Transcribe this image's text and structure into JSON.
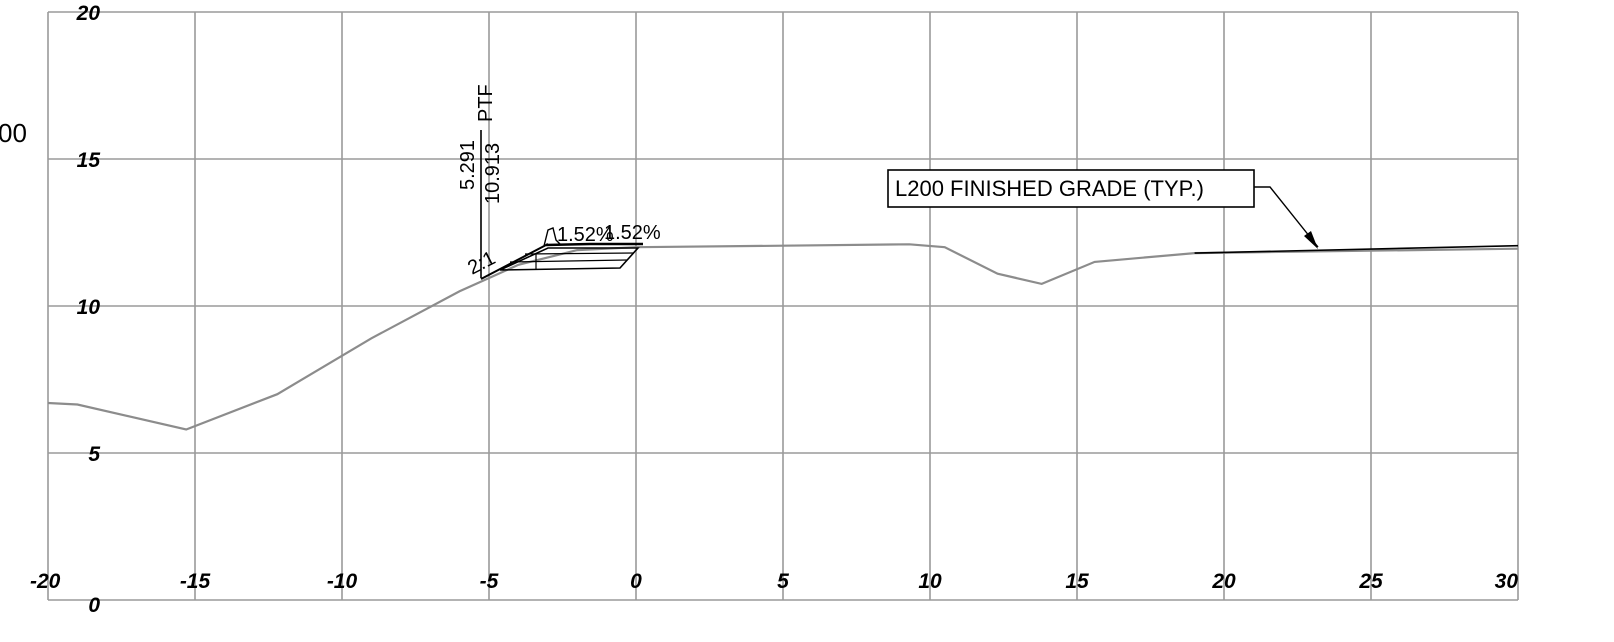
{
  "station_label_partial": "00",
  "axes": {
    "x_ticks": [
      "-20",
      "-15",
      "-10",
      "-5",
      "0",
      "5",
      "10",
      "15",
      "20",
      "25",
      "30"
    ],
    "y_ticks": [
      "0",
      "5",
      "10",
      "15",
      "20"
    ],
    "x_range": [
      -20,
      30
    ],
    "y_range": [
      0,
      20
    ],
    "grid": true
  },
  "annotations": {
    "offset_value": "5.291",
    "elevation_value": "10.913",
    "point_code": "PTF",
    "slope_ratio": "2:1",
    "cross_slope_1": "1.52%",
    "cross_slope_2": "1.52%",
    "callout": "L200 FINISHED GRADE (TYP.)"
  },
  "profiles": {
    "existing_ground": [
      [
        -20,
        6.7
      ],
      [
        -19,
        6.65
      ],
      [
        -15.3,
        5.8
      ],
      [
        -12.2,
        7.0
      ],
      [
        -9,
        8.9
      ],
      [
        -6,
        10.5
      ],
      [
        -4,
        11.4
      ],
      [
        -2,
        11.9
      ],
      [
        0,
        12.0
      ],
      [
        5,
        12.05
      ],
      [
        9.3,
        12.1
      ],
      [
        10.5,
        12.0
      ],
      [
        12.3,
        11.1
      ],
      [
        13.8,
        10.75
      ],
      [
        15.6,
        11.5
      ],
      [
        19,
        11.8
      ],
      [
        30,
        11.95
      ]
    ],
    "finished_grade_right": [
      [
        19,
        11.8
      ],
      [
        30,
        12.05
      ]
    ]
  },
  "colors": {
    "grid": "#9a9a9a",
    "ground": "#8c8c8c",
    "design": "#000000"
  }
}
